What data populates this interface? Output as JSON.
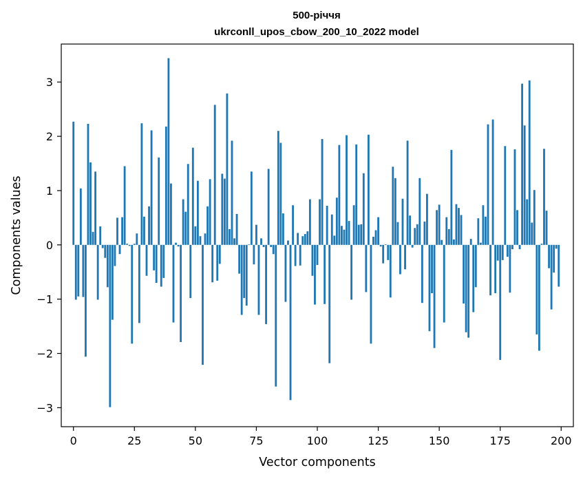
{
  "chart_data": {
    "type": "bar",
    "title": "500-річчя",
    "subtitle": "ukrconll_upos_cbow_200_10_2022 model",
    "xlabel": "Vector components",
    "ylabel": "Components values",
    "xlim": [
      -5,
      205
    ],
    "ylim": [
      -3.35,
      3.7
    ],
    "xticks": [
      0,
      25,
      50,
      75,
      100,
      125,
      150,
      175,
      200
    ],
    "yticks": [
      -3,
      -2,
      -1,
      0,
      1,
      2,
      3
    ],
    "grid": false,
    "bar_color": "#1f77b4",
    "x": [
      0,
      1,
      2,
      3,
      4,
      5,
      6,
      7,
      8,
      9,
      10,
      11,
      12,
      13,
      14,
      15,
      16,
      17,
      18,
      19,
      20,
      21,
      22,
      23,
      24,
      25,
      26,
      27,
      28,
      29,
      30,
      31,
      32,
      33,
      34,
      35,
      36,
      37,
      38,
      39,
      40,
      41,
      42,
      43,
      44,
      45,
      46,
      47,
      48,
      49,
      50,
      51,
      52,
      53,
      54,
      55,
      56,
      57,
      58,
      59,
      60,
      61,
      62,
      63,
      64,
      65,
      66,
      67,
      68,
      69,
      70,
      71,
      72,
      73,
      74,
      75,
      76,
      77,
      78,
      79,
      80,
      81,
      82,
      83,
      84,
      85,
      86,
      87,
      88,
      89,
      90,
      91,
      92,
      93,
      94,
      95,
      96,
      97,
      98,
      99,
      100,
      101,
      102,
      103,
      104,
      105,
      106,
      107,
      108,
      109,
      110,
      111,
      112,
      113,
      114,
      115,
      116,
      117,
      118,
      119,
      120,
      121,
      122,
      123,
      124,
      125,
      126,
      127,
      128,
      129,
      130,
      131,
      132,
      133,
      134,
      135,
      136,
      137,
      138,
      139,
      140,
      141,
      142,
      143,
      144,
      145,
      146,
      147,
      148,
      149,
      150,
      151,
      152,
      153,
      154,
      155,
      156,
      157,
      158,
      159,
      160,
      161,
      162,
      163,
      164,
      165,
      166,
      167,
      168,
      169,
      170,
      171,
      172,
      173,
      174,
      175,
      176,
      177,
      178,
      179,
      180,
      181,
      182,
      183,
      184,
      185,
      186,
      187,
      188,
      189,
      190,
      191,
      192,
      193,
      194,
      195,
      196,
      197,
      198,
      199
    ],
    "values": [
      2.27,
      -1.01,
      -0.95,
      1.04,
      -0.96,
      -2.06,
      2.23,
      1.52,
      0.24,
      1.35,
      -1.01,
      0.34,
      -0.06,
      -0.24,
      -0.78,
      -2.99,
      -1.38,
      -0.39,
      0.5,
      -0.17,
      0.51,
      1.45,
      0.02,
      -0.02,
      -1.82,
      0.02,
      0.21,
      -1.44,
      2.24,
      0.52,
      -0.57,
      0.71,
      2.11,
      -0.47,
      -0.7,
      1.61,
      -0.77,
      -0.61,
      2.18,
      3.44,
      1.13,
      -1.43,
      0.04,
      -0.03,
      -1.79,
      0.84,
      0.61,
      1.49,
      -0.98,
      1.79,
      0.34,
      1.18,
      0.16,
      -2.21,
      0.21,
      0.71,
      1.21,
      -0.69,
      2.58,
      -0.66,
      -0.35,
      1.31,
      1.22,
      2.79,
      0.29,
      1.92,
      0.12,
      0.57,
      -0.53,
      -1.29,
      -0.98,
      -1.12,
      0.01,
      1.35,
      -0.36,
      0.37,
      -1.29,
      0.12,
      -0.04,
      -1.46,
      1.4,
      -0.04,
      -0.17,
      -2.61,
      2.1,
      1.88,
      0.58,
      -1.05,
      0.08,
      -2.86,
      0.73,
      -0.39,
      0.22,
      -0.38,
      0.16,
      0.2,
      0.25,
      0.84,
      -0.57,
      -1.1,
      -0.37,
      0.84,
      1.95,
      -1.09,
      0.72,
      -2.18,
      0.56,
      0.17,
      0.87,
      1.84,
      0.35,
      0.28,
      2.02,
      0.44,
      -1.01,
      0.73,
      1.85,
      0.37,
      0.38,
      1.32,
      -0.87,
      2.03,
      -1.82,
      0.15,
      0.27,
      0.51,
      -0.03,
      -0.34,
      0.01,
      -0.28,
      -0.97,
      1.44,
      1.23,
      0.42,
      -0.54,
      0.85,
      -0.45,
      1.92,
      0.54,
      -0.05,
      0.31,
      0.38,
      1.23,
      -1.07,
      0.43,
      0.94,
      -1.59,
      -0.89,
      -1.9,
      0.64,
      0.74,
      0.09,
      -1.43,
      0.51,
      0.29,
      1.75,
      0.1,
      0.75,
      0.68,
      0.55,
      -1.08,
      -1.61,
      -1.71,
      0.11,
      -1.24,
      -0.78,
      0.49,
      0.04,
      0.73,
      0.52,
      2.22,
      -0.93,
      2.31,
      -0.89,
      -0.29,
      -2.12,
      -0.28,
      1.82,
      -0.22,
      -0.88,
      -0.08,
      1.76,
      0.64,
      -0.08,
      2.97,
      2.2,
      0.84,
      3.03,
      0.41,
      1.01,
      -1.65,
      -1.95,
      0.02,
      1.77,
      0.63,
      -0.43,
      -1.19,
      -0.51,
      -0.07,
      -0.77
    ]
  }
}
